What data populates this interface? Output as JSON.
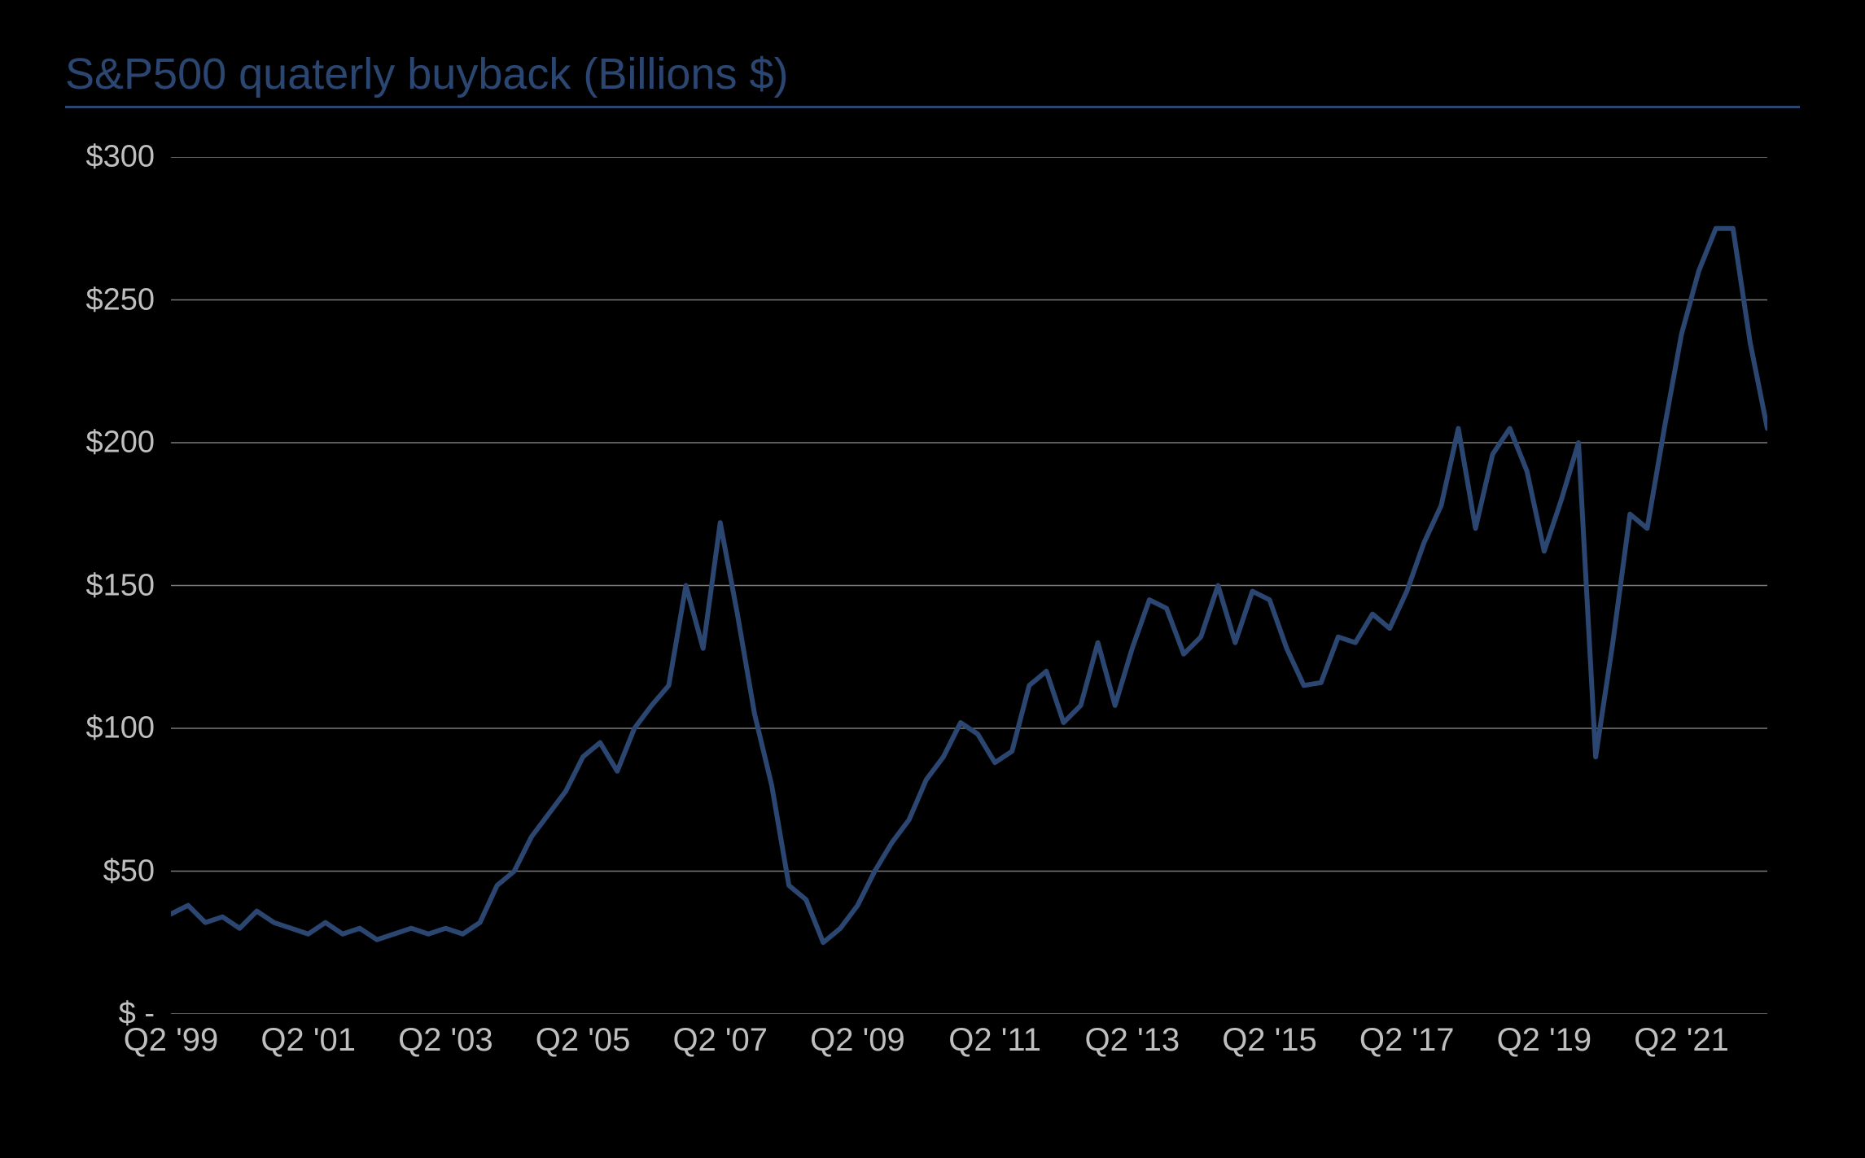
{
  "chart": {
    "type": "line",
    "title": "S&P500 quaterly buyback (Billions $)",
    "title_color": "#2b4670",
    "title_fontsize": 54,
    "title_underline_color": "#2b4670",
    "background_color": "#000000",
    "grid_color": "#7a7a7a",
    "grid_width": 1.5,
    "axis_text_color": "#bfbfbf",
    "line_color": "#2b4670",
    "line_width": 6,
    "ylim": [
      0,
      300
    ],
    "yticks": [
      0,
      50,
      100,
      150,
      200,
      250,
      300
    ],
    "ytick_labels": [
      "$ -",
      "$50",
      "$100",
      "$150",
      "$200",
      "$250",
      "$300"
    ],
    "xrange": [
      "1999-Q2",
      "2022-Q3"
    ],
    "xticks_indices": [
      0,
      8,
      16,
      24,
      32,
      40,
      48,
      56,
      64,
      72,
      80,
      88
    ],
    "xtick_labels": [
      "Q2 '99",
      "Q2 '01",
      "Q2 '03",
      "Q2 '05",
      "Q2 '07",
      "Q2 '09",
      "Q2 '11",
      "Q2 '13",
      "Q2 '15",
      "Q2 '17",
      "Q2 '19",
      "Q2 '21"
    ],
    "n_points": 94,
    "values": [
      35,
      38,
      32,
      34,
      30,
      36,
      32,
      30,
      28,
      32,
      28,
      30,
      26,
      28,
      30,
      28,
      30,
      28,
      32,
      45,
      50,
      62,
      70,
      78,
      90,
      95,
      85,
      100,
      108,
      115,
      150,
      128,
      172,
      140,
      105,
      80,
      45,
      40,
      25,
      30,
      38,
      50,
      60,
      68,
      82,
      90,
      102,
      98,
      88,
      92,
      115,
      120,
      102,
      108,
      130,
      108,
      128,
      145,
      142,
      126,
      132,
      150,
      130,
      148,
      145,
      128,
      115,
      116,
      132,
      130,
      140,
      135,
      148,
      165,
      178,
      205,
      170,
      196,
      205,
      190,
      162,
      180,
      200,
      90,
      130,
      175,
      170,
      205,
      238,
      260,
      275,
      275,
      235,
      205
    ]
  }
}
